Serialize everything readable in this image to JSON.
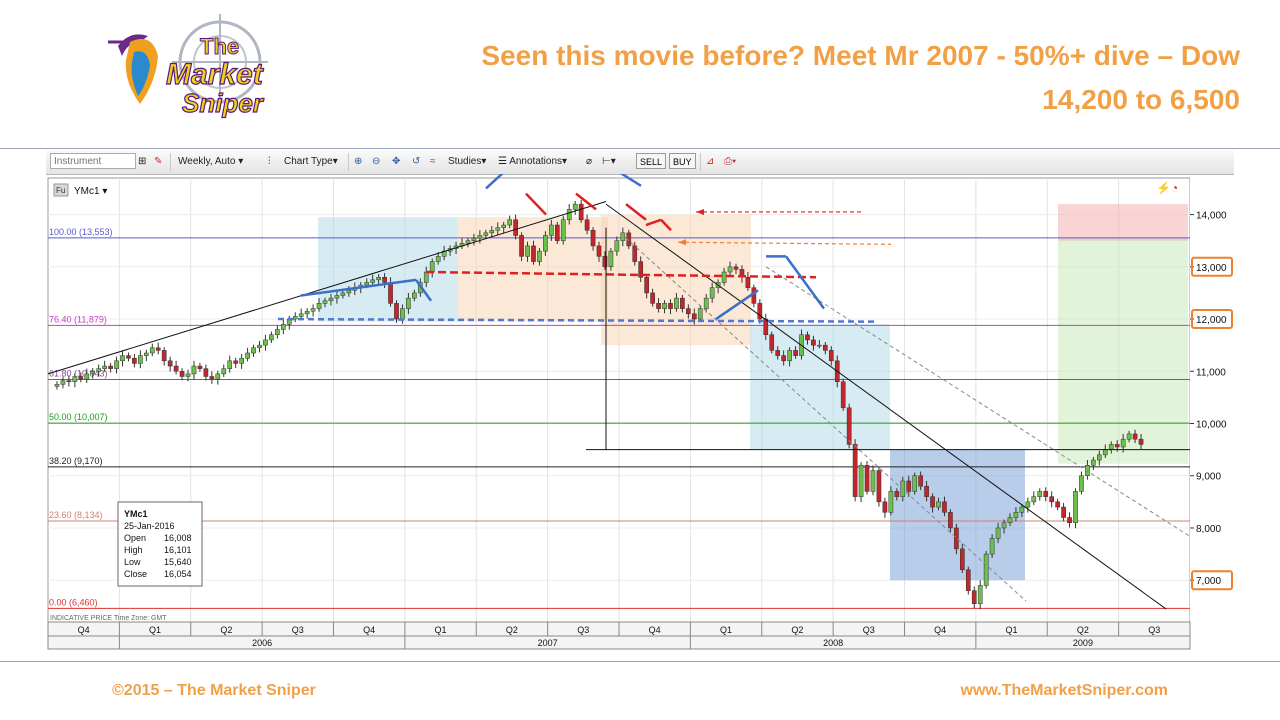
{
  "slide": {
    "title_line1": "Seen this movie before? Meet Mr 2007 - 50%+ dive – Dow",
    "title_line2": "14,200 to 6,500",
    "footer_left": "©2015 – The Market Sniper",
    "footer_right": "www.TheMarketSniper.com",
    "logo_text_1": "The",
    "logo_text_2": "Market",
    "logo_text_3": "Sniper"
  },
  "toolbar": {
    "instrument_placeholder": "Instrument",
    "interval": "Weekly, Auto",
    "chart_type": "Chart Type",
    "studies": "Studies",
    "annotations": "Annotations",
    "sell": "SELL",
    "buy": "BUY"
  },
  "chart_data": {
    "type": "candlestick",
    "symbol": "YMc1",
    "symbol_prefix": "Fu",
    "ylim": [
      6200,
      14700
    ],
    "y_ticks": [
      14000,
      13000,
      12000,
      11000,
      10000,
      9000,
      8000,
      7000
    ],
    "y_tick_labels": [
      "14,000",
      "13,000",
      "12,000",
      "11,000",
      "10,000",
      "9,000",
      "8,000",
      "7,000"
    ],
    "highlighted_ticks": [
      13000,
      12000,
      7000
    ],
    "fib_levels": [
      {
        "label": "100.00 (13,553)",
        "value": 13553,
        "color": "#5a5ad0"
      },
      {
        "label": "76.40 (11,879)",
        "value": 11879,
        "color": "#c040c0"
      },
      {
        "label": "61.80 (10,843)",
        "value": 10843,
        "color": "#8a4c9c"
      },
      {
        "label": "50.00 (10,007)",
        "value": 10007,
        "color": "#1e9a1e"
      },
      {
        "label": "38.20 (9,170)",
        "value": 9170,
        "color": "#222222"
      },
      {
        "label": "23.60 (8,134)",
        "value": 8134,
        "color": "#d08070"
      },
      {
        "label": "0.00 (6,460)",
        "value": 6460,
        "color": "#e03030"
      }
    ],
    "quarters": [
      "Q4",
      "Q1",
      "Q2",
      "Q3",
      "Q4",
      "Q1",
      "Q2",
      "Q3",
      "Q4",
      "Q1",
      "Q2",
      "Q3",
      "Q4",
      "Q1",
      "Q2",
      "Q3"
    ],
    "years": [
      "2006",
      "2007",
      "2008",
      "2009"
    ],
    "weekly_close": [
      10750,
      10820,
      10800,
      10900,
      10850,
      10950,
      11000,
      11050,
      11100,
      11050,
      11200,
      11300,
      11250,
      11150,
      11300,
      11350,
      11450,
      11400,
      11200,
      11100,
      11000,
      10900,
      10950,
      11100,
      11050,
      10900,
      10850,
      10950,
      11050,
      11200,
      11150,
      11250,
      11350,
      11450,
      11500,
      11600,
      11700,
      11800,
      11900,
      12000,
      12050,
      12100,
      12150,
      12200,
      12300,
      12350,
      12400,
      12450,
      12500,
      12550,
      12600,
      12650,
      12700,
      12750,
      12800,
      12700,
      12300,
      12000,
      12200,
      12400,
      12500,
      12700,
      12900,
      13100,
      13200,
      13300,
      13350,
      13400,
      13450,
      13500,
      13550,
      13600,
      13650,
      13700,
      13750,
      13800,
      13900,
      13600,
      13200,
      13400,
      13100,
      13300,
      13600,
      13800,
      13500,
      13900,
      14100,
      14200,
      13900,
      13700,
      13400,
      13200,
      13000,
      13300,
      13500,
      13650,
      13400,
      13100,
      12800,
      12500,
      12300,
      12200,
      12300,
      12200,
      12400,
      12200,
      12100,
      12000,
      12200,
      12400,
      12600,
      12700,
      12900,
      13000,
      12950,
      12800,
      12600,
      12300,
      12000,
      11700,
      11400,
      11300,
      11200,
      11400,
      11300,
      11700,
      11600,
      11500,
      11500,
      11400,
      11200,
      10800,
      10300,
      9600,
      8600,
      9200,
      8700,
      9100,
      8500,
      8300,
      8700,
      8600,
      8900,
      8700,
      9000,
      8800,
      8600,
      8400,
      8500,
      8300,
      8000,
      7600,
      7200,
      6800,
      6550,
      6900,
      7500,
      7800,
      8000,
      8100,
      8200,
      8300,
      8400,
      8500,
      8600,
      8700,
      8600,
      8500,
      8400,
      8200,
      8100,
      8700,
      9000,
      9200,
      9300,
      9400,
      9500,
      9600,
      9550,
      9700,
      9800,
      9700,
      9600
    ],
    "info_box": {
      "symbol": "YMc1",
      "date": "25-Jan-2016",
      "open_label": "Open",
      "open": "16,008",
      "high_label": "High",
      "high": "16,101",
      "low_label": "Low",
      "low": "15,640",
      "close_label": "Close",
      "close": "16,054"
    },
    "footer_note": "INDICATIVE PRICE   Time Zone: GMT"
  }
}
